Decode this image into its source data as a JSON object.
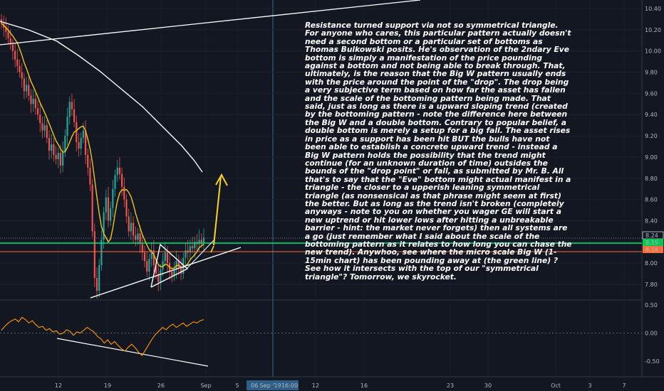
{
  "chart_data": {
    "type": "candlestick",
    "price_axis": {
      "ticks": [
        "10.40",
        "10.20",
        "10.00",
        "9.80",
        "9.60",
        "9.40",
        "9.20",
        "9.00",
        "8.80",
        "8.60",
        "8.40",
        "8.20",
        "8.00",
        "7.80"
      ],
      "ylim": [
        7.72,
        10.44
      ]
    },
    "oscillator_axis": {
      "ticks": [
        "0.50",
        "0.00",
        "-0.50"
      ],
      "ylim": [
        -0.62,
        0.55
      ]
    },
    "x_axis": {
      "ticks": [
        "12",
        "19",
        "26",
        "Sep",
        "5",
        "12",
        "16",
        "23",
        "30",
        "Oct",
        "3",
        "7"
      ],
      "crosshair_date": "06 Sep '19",
      "crosshair_time": "16:00"
    },
    "price_labels": {
      "last": "8.24",
      "green_line": "8.19",
      "red_line": "8.18"
    },
    "colors": {
      "background": "#131722",
      "up_candle": "#26a69a",
      "down_candle": "#ef5350",
      "ma_fast": "#f0c419",
      "ma_slow": "#ffffff",
      "green_line": "#00e676",
      "red_line": "#ff6d3a",
      "arrow": "#ffd21f",
      "crosshair": "#2f6f8f",
      "oscillator": "#ff9800"
    },
    "price_series": [
      10.26,
      10.22,
      10.18,
      10.12,
      10.06,
      10.0,
      9.92,
      9.86,
      9.8,
      9.74,
      9.62,
      9.68,
      9.58,
      9.5,
      9.55,
      9.46,
      9.4,
      9.32,
      9.25,
      9.3,
      9.18,
      9.06,
      9.12,
      9.02,
      8.98,
      9.04,
      8.92,
      9.05,
      9.2,
      9.38,
      9.52,
      9.45,
      9.33,
      9.14,
      9.08,
      9.18,
      9.25,
      9.02,
      8.9,
      8.74,
      8.3,
      7.86,
      7.74,
      7.98,
      8.22,
      8.48,
      8.62,
      8.4,
      8.52,
      8.7,
      8.83,
      8.9,
      8.84,
      8.72,
      8.6,
      8.44,
      8.3,
      8.38,
      8.26,
      8.22,
      8.28,
      8.18,
      8.1,
      8.02,
      7.92,
      8.04,
      8.12,
      7.98,
      7.9,
      7.82,
      7.94,
      8.02,
      8.1,
      8.0,
      7.92,
      7.88,
      7.94,
      8.02,
      7.96,
      7.9,
      8.05,
      8.12,
      8.1,
      8.16,
      8.14,
      8.2,
      8.18,
      8.22,
      8.19,
      8.24
    ],
    "oscillator_series": [
      0.05,
      0.12,
      0.18,
      0.22,
      0.25,
      0.2,
      0.28,
      0.24,
      0.18,
      0.22,
      0.15,
      0.1,
      0.12,
      0.05,
      0.08,
      0.02,
      0.04,
      -0.02,
      0.0,
      0.06,
      0.03,
      -0.04,
      0.02,
      0.0,
      0.05,
      0.1,
      0.06,
      0.02,
      -0.06,
      -0.1,
      -0.18,
      -0.12,
      -0.2,
      -0.15,
      -0.22,
      -0.28,
      -0.32,
      -0.25,
      -0.2,
      -0.26,
      -0.34,
      -0.4,
      -0.3,
      -0.2,
      -0.1,
      -0.02,
      0.04,
      0.1,
      0.06,
      0.12,
      0.16,
      0.1,
      0.14,
      0.18,
      0.12,
      0.16,
      0.2,
      0.18,
      0.22,
      0.24
    ]
  },
  "annotation": {
    "text": "Resistance turned support via not so symmetrical triangle.  For anyone who cares, this particular pattern actually doesn't need a second bottom or a particular set of bottoms as Thomas Bulkowski posits.  He's observation of the 2ndary Eve bottom is simply a manifestation of the price pounding against a bottom and not being able to break through.  That, ultimately, is the reason that the Big W pattern usually ends with the price around the point of the \"drop\".  The drop being a very subjective term based on how far the asset has fallen and the scale of the bottoming pattern being made.  That said, just as long as there is a upward sloping trend (created by the bottoming pattern - note the difference here between the Big W and a double bottom.  Contrary to popular belief, a double bottom is merely a setup for a big fall.  The asset rises in price as a support has been hit BUT the bulls have not been able to establish a concrete upward trend - instead a Big W pattern holds the possibility that the trend might continue (for an unknown duration of time) outsides the bounds of the \"drop point\" or fall, as submitted by Mr. B.  All that's to say that the \"Eve\" bottom might actual manifest in a triangle - the closer to a upperish leaning symmetrical triangle (as nonsensical as that phrase might seem at first) the better. But as long as the trend isn't broken (completely anyways - note to you on whether you wager GE will start a new uptrend or hit lower lows after hitting a unbreakable barrier - hint: the market never forgets) then all systems are a go (just remember what I said about the scale of the bottoming pattern as it relates to how long you can chase the new trend).  Anywhoo, see where the micro scale Big W (1-15min chart) has been pounding away at (the green line) ?  See how it intersects with the top of our \"symmetrical triangle\"?  Tomorrow, we skyrocket."
  }
}
